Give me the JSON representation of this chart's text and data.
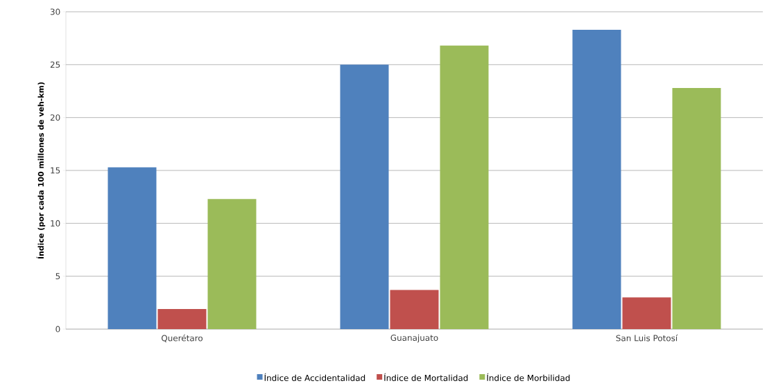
{
  "chart_data": {
    "type": "bar",
    "ylabel": "Índice (por cada 100 millones de veh-km)",
    "categories": [
      "Querétaro",
      "Guanajuato",
      "San Luis Potosí"
    ],
    "series": [
      {
        "name": "Índice de Accidentalidad",
        "color": "#4f81bd",
        "values": [
          15.3,
          25.0,
          28.3
        ]
      },
      {
        "name": "Índice de Mortalidad",
        "color": "#c0504d",
        "values": [
          1.9,
          3.7,
          3.0
        ]
      },
      {
        "name": "Índice de Morbilidad",
        "color": "#9bbb59",
        "values": [
          12.3,
          26.8,
          22.8
        ]
      }
    ],
    "ylim": [
      0,
      30
    ],
    "yticks": [
      0,
      5,
      10,
      15,
      20,
      25,
      30
    ],
    "grid": "y",
    "legend": "bottom"
  }
}
